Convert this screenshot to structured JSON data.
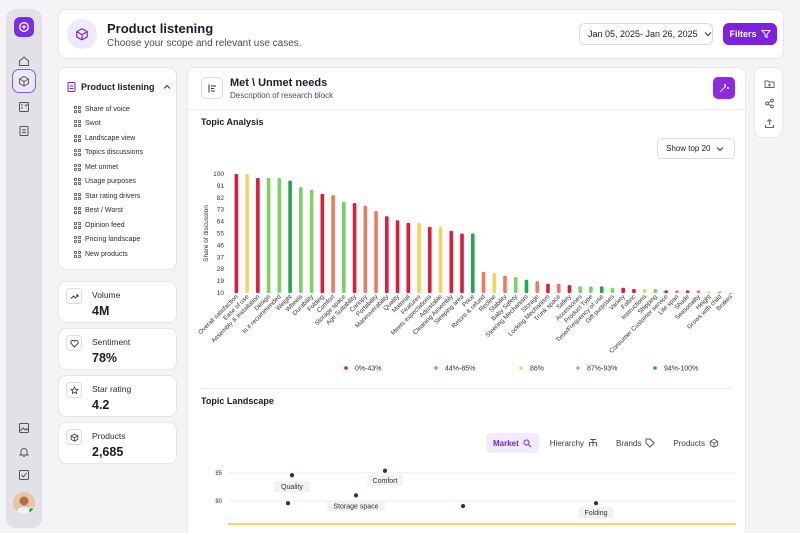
{
  "header": {
    "title": "Product listening",
    "subtitle": "Choose your scope and relevant use cases.",
    "date_range": "Jan 05, 2025- Jan 26, 2025",
    "filters_label": "Filters"
  },
  "nav": {
    "title": "Product listening",
    "items": [
      "Share of voice",
      "Swot",
      "Landscape view",
      "Topics discussions",
      "Met unmet",
      "Usage purposes",
      "Star rating drivers",
      "Best / Worst",
      "Opinion feed",
      "Pricing landscape",
      "New products"
    ]
  },
  "stats": [
    {
      "label": "Volume",
      "value": "4M",
      "icon": "trend-icon"
    },
    {
      "label": "Sentiment",
      "value": "78%",
      "icon": "heart-icon"
    },
    {
      "label": "Star rating",
      "value": "4.2",
      "icon": "star-icon"
    },
    {
      "label": "Products",
      "value": "2,685",
      "icon": "cube-icon"
    }
  ],
  "block": {
    "title": "Met \\ Unmet needs",
    "description": "Description of research block"
  },
  "topic_analysis": {
    "heading": "Topic Analysis",
    "show_top": "Show top 20"
  },
  "topic_landscape": {
    "heading": "Topic Landscape",
    "tabs": [
      "Market",
      "Hierarchy",
      "Brands",
      "Products"
    ]
  },
  "colors": {
    "accent": "#7a22e0",
    "red": "#e01b3c",
    "salmon": "#f07a5e",
    "yellow": "#f5d45e",
    "lightgreen": "#7ad263",
    "green": "#22a84c"
  },
  "chart_data": [
    {
      "type": "bar",
      "title": "",
      "xlabel": "",
      "ylabel": "Share of discussion",
      "yticks": [
        10,
        19,
        28,
        37,
        46,
        55,
        64,
        73,
        82,
        91,
        100
      ],
      "ylim": [
        10,
        100
      ],
      "categories": [
        "Overall satisfaction",
        "Ease of use",
        "Assembly & Installation",
        "Design",
        "Is it recommended",
        "Weight",
        "Wheels",
        "Durability",
        "Folding",
        "Comfort",
        "Storage space",
        "Age Suitability",
        "Canopy",
        "Portability",
        "Maneuverability",
        "Quality",
        "Material",
        "Features",
        "Meets expectations",
        "Adjustable",
        "Cleaning Assembly",
        "Sleeping area",
        "Price",
        "Return & refund",
        "Recline",
        "Stability",
        "Baby Safety",
        "Steering Mechanism",
        "Storage",
        "Locking Mechanism",
        "Trunk space",
        "Safety",
        "Accessories",
        "Product Type",
        "Time/Frequency of use",
        "Gift purposes",
        "Variety",
        "Fabric",
        "Instructions",
        "Shipping",
        "Consumer Customer service",
        "Life span",
        "Shade",
        "Seasonality",
        "Height",
        "Grows with child",
        "Brakes"
      ],
      "values": [
        100,
        100,
        97,
        97,
        97,
        95,
        90,
        88,
        85,
        84,
        79,
        78,
        76,
        72,
        68,
        65,
        63,
        63,
        60,
        60,
        57,
        55,
        55,
        26,
        25,
        23,
        22,
        20,
        19,
        17,
        17,
        16,
        15,
        15,
        15,
        14,
        14,
        13,
        13,
        13,
        12,
        12,
        12,
        12,
        11,
        11,
        10
      ],
      "series_colors": [
        "red",
        "yellow",
        "red",
        "lightgreen",
        "lightgreen",
        "green",
        "lightgreen",
        "lightgreen",
        "red",
        "salmon",
        "lightgreen",
        "red",
        "salmon",
        "salmon",
        "red",
        "red",
        "red",
        "yellow",
        "red",
        "yellow",
        "red",
        "red",
        "green",
        "salmon",
        "yellow",
        "salmon",
        "lightgreen",
        "green",
        "salmon",
        "red",
        "salmon",
        "red",
        "lightgreen",
        "lightgreen",
        "green",
        "lightgreen",
        "red",
        "red",
        "yellow",
        "lightgreen",
        "red",
        "salmon",
        "red",
        "salmon",
        "yellow",
        "lightgreen",
        "lightgreen"
      ],
      "legend": [
        {
          "label": "0%-43%",
          "color": "red"
        },
        {
          "label": "44%-85%",
          "color": "salmon"
        },
        {
          "label": "86%",
          "color": "yellow"
        },
        {
          "label": "87%-93%",
          "color": "lightgreen"
        },
        {
          "label": "94%-100%",
          "color": "green"
        }
      ]
    },
    {
      "type": "scatter",
      "yticks": [
        85,
        80
      ],
      "points": [
        {
          "label": "Quality",
          "y": 84.6
        },
        {
          "label": "Comfort",
          "y": 85.4
        },
        {
          "label": "Storage space",
          "y": 81.0
        },
        {
          "label": "",
          "y": 79.6
        },
        {
          "label": "",
          "y": 79.1
        },
        {
          "label": "Folding",
          "y": 79.6
        }
      ]
    }
  ]
}
